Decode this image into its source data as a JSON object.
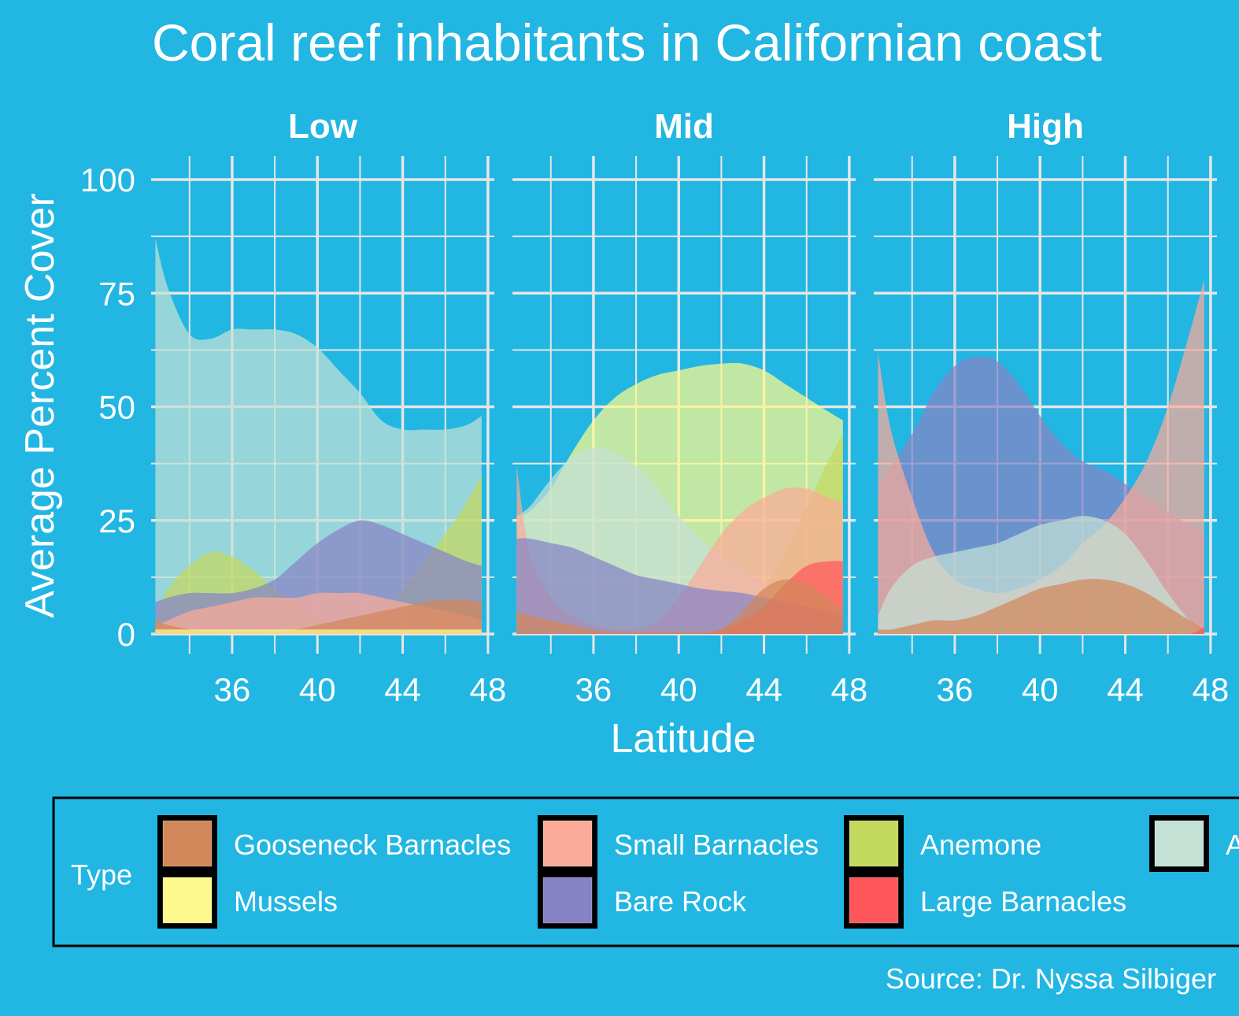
{
  "chart_data": {
    "type": "area",
    "title": "Coral reef inhabitants in Californian coast",
    "caption": "Source: Dr. Nyssa Silbiger",
    "xlabel": "Latitude",
    "ylabel": "Average Percent Cover",
    "xlim": [
      32.2,
      48.3
    ],
    "ylim": [
      0,
      100
    ],
    "x_ticks": [
      36,
      40,
      44,
      48
    ],
    "y_ticks": [
      0,
      25,
      50,
      75,
      100
    ],
    "grid": true,
    "legend_position": "bottom",
    "legend_title": "Type",
    "colors": {
      "background": "#22b6e2",
      "grid": "#e6e6e6",
      "text": "#ffffff"
    },
    "series_colors": {
      "Gooseneck Barnacles": "#d2875a",
      "Small Barnacles": "#fcab98",
      "Anemone": "#c3d95e",
      "Algae": "#c4e1d6",
      "Mussels": "#fdf98c",
      "Bare Rock": "#8683c5",
      "Large Barnacles": "#ff565c"
    },
    "legend": [
      "Gooseneck Barnacles",
      "Small Barnacles",
      "Anemone",
      "Algae",
      "Mussels",
      "Bare Rock",
      "Large Barnacles"
    ],
    "legend_visible_labels": {
      "Algae": "A"
    },
    "x": [
      32.4,
      33,
      34,
      35,
      36,
      37,
      38,
      39,
      40,
      41,
      42,
      43,
      44,
      45,
      46,
      47,
      47.7
    ],
    "facets": [
      {
        "name": "Low",
        "series": [
          {
            "name": "Algae",
            "values": [
              87,
              76,
              66,
              65,
              67,
              67,
              67,
              66,
              63,
              58,
              53,
              47,
              45,
              45,
              45,
              46,
              48
            ]
          },
          {
            "name": "Anemone",
            "values": [
              3,
              10,
              15,
              18,
              17,
              14,
              10,
              7,
              4,
              2,
              2,
              5,
              10,
              16,
              22,
              29,
              35
            ]
          },
          {
            "name": "Bare Rock",
            "values": [
              7,
              8,
              9,
              9,
              9,
              10,
              12,
              16,
              20,
              23,
              25,
              24,
              22,
              20,
              18,
              16,
              15
            ]
          },
          {
            "name": "Small Barnacles",
            "values": [
              2,
              3,
              5,
              6,
              7,
              8,
              8,
              8,
              9,
              9,
              9,
              8,
              7,
              6,
              5,
              4,
              3
            ]
          },
          {
            "name": "Gooseneck Barnacles",
            "values": [
              3,
              2,
              1,
              0.5,
              0.5,
              0.5,
              0.5,
              1,
              2,
              3,
              4,
              5,
              6,
              7,
              7.5,
              7.5,
              7
            ]
          },
          {
            "name": "Mussels",
            "values": [
              1,
              1,
              1,
              1,
              1,
              1,
              1,
              1,
              1,
              1,
              1,
              1,
              1,
              1,
              1,
              1,
              1
            ]
          },
          {
            "name": "Large Barnacles",
            "values": [
              0,
              0,
              0,
              0,
              0,
              0,
              0,
              0,
              0,
              0,
              0,
              0,
              0,
              0,
              0,
              0,
              0
            ]
          }
        ]
      },
      {
        "name": "Mid",
        "series": [
          {
            "name": "Mussels",
            "values": [
              26,
              27,
              32,
              40,
              47,
              52,
              55,
              57,
              58,
              59,
              59.5,
              59.5,
              58,
              55,
              52,
              49,
              47
            ]
          },
          {
            "name": "Anemone",
            "values": [
              5,
              5,
              5,
              4,
              3,
              2,
              1.5,
              1,
              1,
              1,
              2,
              5,
              10,
              18,
              28,
              38,
              44
            ]
          },
          {
            "name": "Algae",
            "values": [
              26,
              28,
              34,
              39,
              41,
              40,
              37,
              32,
              26,
              21,
              17,
              14,
              11,
              9,
              7,
              6,
              5
            ]
          },
          {
            "name": "Small Barnacles",
            "values": [
              37,
              18,
              8,
              4,
              2,
              1,
              1,
              3,
              8,
              15,
              22,
              27,
              30,
              32,
              32,
              30,
              29
            ]
          },
          {
            "name": "Bare Rock",
            "values": [
              21,
              21,
              20,
              19,
              17,
              15,
              13,
              12,
              11,
              10,
              9.5,
              9,
              8,
              7,
              6,
              5,
              4
            ]
          },
          {
            "name": "Large Barnacles",
            "values": [
              0,
              0,
              0,
              0,
              0,
              0,
              0,
              0,
              0,
              0,
              1,
              3,
              6,
              11,
              15,
              16,
              16
            ]
          },
          {
            "name": "Gooseneck Barnacles",
            "values": [
              5,
              4,
              3,
              2,
              1,
              0.5,
              0.5,
              0.5,
              0.5,
              0.5,
              1,
              5,
              10,
              12,
              11,
              8,
              5
            ]
          }
        ]
      },
      {
        "name": "High",
        "series": [
          {
            "name": "Bare Rock",
            "values": [
              32,
              37,
              44,
              53,
              59,
              61,
              60,
              55,
              48,
              42,
              38,
              36,
              33,
              30,
              27,
              24,
              22
            ]
          },
          {
            "name": "Small Barnacles",
            "values": [
              62,
              45,
              30,
              18,
              12,
              10,
              9,
              10,
              12,
              15,
              20,
              24,
              30,
              38,
              50,
              66,
              78
            ]
          },
          {
            "name": "Algae",
            "values": [
              4,
              10,
              15,
              17,
              18,
              19,
              20,
              22,
              24,
              25,
              26,
              25,
              22,
              16,
              9,
              3,
              0
            ]
          },
          {
            "name": "Gooseneck Barnacles",
            "values": [
              1,
              1,
              2,
              3,
              3,
              4,
              6,
              8,
              10,
              11,
              12,
              12,
              11,
              9,
              6,
              3,
              1
            ]
          },
          {
            "name": "Anemone",
            "values": [
              0,
              0,
              0,
              0,
              0,
              0,
              0,
              0,
              0,
              0,
              0,
              0,
              0,
              0,
              0,
              0,
              0
            ]
          },
          {
            "name": "Mussels",
            "values": [
              0,
              0,
              0,
              0,
              0,
              0,
              0,
              0,
              0,
              0,
              0,
              0,
              0,
              0,
              0,
              0,
              0
            ]
          },
          {
            "name": "Large Barnacles",
            "values": [
              0,
              0,
              0,
              0,
              0,
              0,
              0,
              0,
              0,
              0,
              0,
              0,
              0,
              0,
              0,
              0,
              1.5
            ]
          }
        ]
      }
    ]
  }
}
